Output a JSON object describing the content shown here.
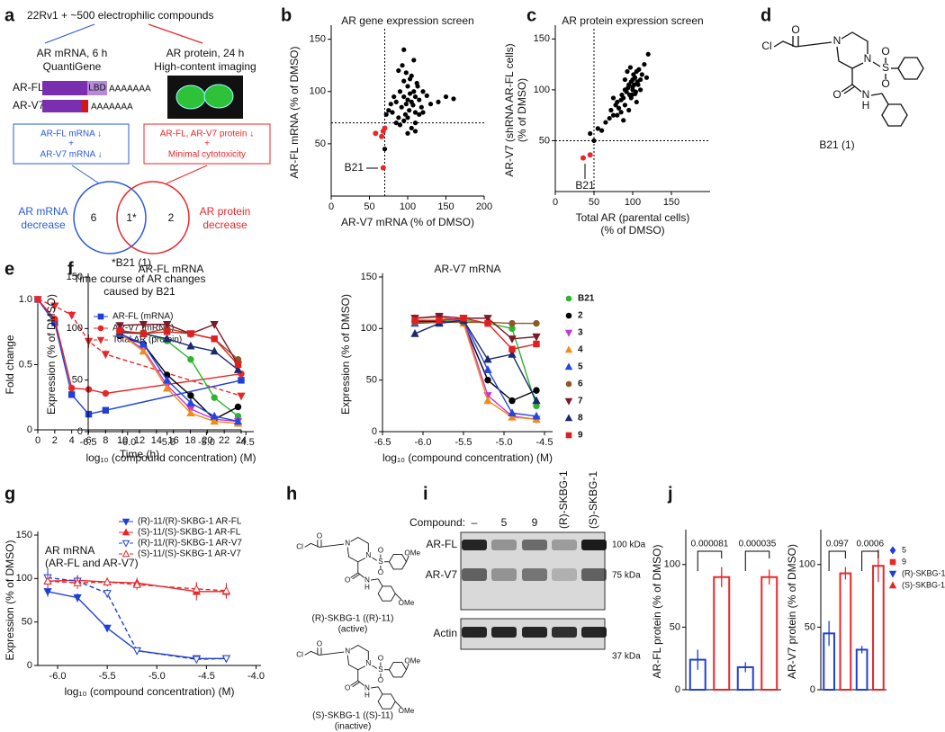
{
  "panel_labels": [
    "a",
    "b",
    "c",
    "d",
    "e",
    "f",
    "g",
    "h",
    "i",
    "j"
  ],
  "panel_a": {
    "header": "22Rv1 + ~500 electrophilic compounds",
    "left_title": [
      "AR mRNA, 6 h",
      "QuantiGene"
    ],
    "right_title": [
      "AR protein, 24 h",
      "High-content imaging"
    ],
    "transcripts": [
      "AR-FL",
      "AR-V7"
    ],
    "domain": "LBD",
    "poly_a": "AAAAAAA",
    "left_box": [
      "AR-FL mRNA ↓",
      "+",
      "AR-V7 mRNA ↓"
    ],
    "right_box": [
      "AR-FL, AR-V7 protein ↓",
      "+",
      "Minimal cytotoxicity"
    ],
    "venn": {
      "left": "6",
      "overlap": "1*",
      "right": "2",
      "left_label": [
        "AR mRNA",
        "decrease"
      ],
      "right_label": [
        "AR protein",
        "decrease"
      ]
    },
    "footnote": "*B21 (1)"
  },
  "panel_d": {
    "atoms": [
      "Cl",
      "O",
      "N",
      "N",
      "S",
      "O",
      "O",
      "O",
      "N",
      "H"
    ],
    "caption": "B21 (1)"
  },
  "panel_h": {
    "molecules": [
      {
        "atoms": [
          "Cl",
          "O",
          "N",
          "N",
          "S",
          "O",
          "O",
          "O",
          "N",
          "H",
          "OMe",
          "OMe"
        ],
        "caption": [
          "(R)-SKBG-1 ((R)-11)",
          "(active)"
        ]
      },
      {
        "atoms": [
          "Cl",
          "O",
          "N",
          "N",
          "S",
          "O",
          "O",
          "O",
          "N",
          "H",
          "OMe",
          "OMe"
        ],
        "caption": [
          "(S)-SKBG-1 ((S)-11)",
          "(inactive)"
        ]
      }
    ]
  },
  "panel_i": {
    "row_label": "Compound:",
    "lanes": [
      "–",
      "5",
      "9",
      "(R)-SKBG-1",
      "(S)-SKBG-1"
    ],
    "bands": [
      "AR-FL",
      "AR-V7",
      "Actin"
    ],
    "markers": [
      "100 kDa",
      "75 kDa",
      "37 kDa"
    ]
  },
  "chart_data": [
    {
      "type": "scatter",
      "title": "AR gene expression screen",
      "xlabel": "AR-V7 mRNA (% of DMSO)",
      "ylabel": "AR-FL mRNA (% of DMSO)",
      "xlim": [
        0,
        200
      ],
      "ylim": [
        0,
        160
      ],
      "xticks": [
        0,
        50,
        100,
        150,
        200
      ],
      "yticks": [
        50,
        100,
        150
      ],
      "vlines": [
        70
      ],
      "hlines": [
        70
      ],
      "series": [
        {
          "color": "#000000",
          "x": [
            80,
            85,
            88,
            90,
            92,
            95,
            95,
            97,
            98,
            100,
            100,
            102,
            103,
            105,
            105,
            107,
            108,
            110,
            110,
            112,
            115,
            118,
            120,
            125,
            130,
            140,
            150,
            160,
            85,
            90,
            95,
            100,
            105,
            110,
            115,
            120,
            88,
            93,
            98,
            103,
            108,
            113,
            75,
            78,
            82,
            70,
            72,
            100,
            110,
            95
          ],
          "values": [
            80,
            90,
            75,
            100,
            85,
            95,
            110,
            78,
            88,
            92,
            105,
            82,
            98,
            90,
            115,
            87,
            100,
            95,
            80,
            108,
            92,
            85,
            100,
            96,
            88,
            90,
            95,
            93,
            70,
            68,
            72,
            75,
            65,
            70,
            78,
            80,
            120,
            125,
            118,
            112,
            130,
            105,
            82,
            88,
            95,
            45,
            78,
            60,
            62,
            140
          ]
        },
        {
          "color": "#e8272a",
          "x": [
            58,
            68,
            66,
            70,
            68
          ],
          "values": [
            60,
            62,
            57,
            65,
            27
          ]
        }
      ],
      "annotations": [
        "B21"
      ]
    },
    {
      "type": "scatter",
      "title": "AR protein expression screen",
      "xlabel": [
        "Total AR (parental cells)",
        "(% of DMSO)"
      ],
      "ylabel": [
        "AR-V7 (shRNA AR-FL cells)",
        "(% of DMSO)"
      ],
      "xlim": [
        0,
        200
      ],
      "ylim": [
        0,
        160
      ],
      "xticks": [
        0,
        50,
        100,
        150
      ],
      "yticks": [
        50,
        100,
        150
      ],
      "vlines": [
        50
      ],
      "hlines": [
        50
      ],
      "series": [
        {
          "color": "#000000",
          "x": [
            60,
            65,
            70,
            72,
            75,
            78,
            80,
            82,
            85,
            86,
            88,
            90,
            90,
            92,
            94,
            95,
            96,
            98,
            100,
            100,
            101,
            102,
            103,
            104,
            105,
            106,
            108,
            110,
            112,
            115,
            118,
            120,
            95,
            98,
            100,
            103,
            105,
            80,
            85,
            90,
            93,
            97,
            50,
            55,
            45,
            75,
            88,
            110,
            107,
            99
          ],
          "values": [
            60,
            68,
            72,
            80,
            75,
            85,
            88,
            82,
            90,
            95,
            92,
            100,
            85,
            98,
            102,
            105,
            95,
            108,
            110,
            100,
            115,
            105,
            112,
            98,
            118,
            108,
            120,
            110,
            115,
            125,
            112,
            135,
            80,
            92,
            103,
            96,
            88,
            75,
            78,
            110,
            118,
            122,
            50,
            62,
            57,
            92,
            70,
            100,
            105,
            95
          ]
        },
        {
          "color": "#e8272a",
          "x": [
            36,
            45
          ],
          "values": [
            33,
            36
          ]
        }
      ],
      "annotations": [
        "B21"
      ]
    },
    {
      "type": "line",
      "title": [
        "Time course of AR changes",
        "caused by B21"
      ],
      "xlabel": "Time (h)",
      "ylabel": "Fold change",
      "x": [
        0,
        2,
        4,
        6,
        8,
        24
      ],
      "xlim": [
        0,
        24
      ],
      "ylim": [
        0,
        1
      ],
      "xticks": [
        0,
        2,
        4,
        6,
        8,
        10,
        12,
        14,
        16,
        18,
        20,
        22,
        24
      ],
      "yticks": [
        0,
        0.5,
        {
          "value": 1,
          "label": "1.0"
        }
      ],
      "series": [
        {
          "name": "AR-FL (mRNA)",
          "color": "#1f3fd6",
          "marker": "square",
          "values": [
            1,
            0.82,
            0.27,
            0.12,
            0.15,
            0.38
          ]
        },
        {
          "name": "AR-V7 (mRNA)",
          "color": "#e8272a",
          "marker": "circle",
          "values": [
            1,
            0.85,
            0.32,
            0.31,
            0.28,
            0.43
          ]
        },
        {
          "name": "Total AR (protein)",
          "color": "#e8272a",
          "marker": "tri-down",
          "dash": true,
          "values": [
            1,
            0.95,
            0.88,
            0.68,
            0.58,
            0.26
          ],
          "errors": [
            0.02,
            0.04,
            0.03,
            0.05,
            0.03,
            0.01
          ]
        }
      ]
    },
    {
      "type": "line",
      "title": "AR-FL mRNA",
      "xlabel": "log₁₀ (compound concentration) (M)",
      "ylabel": "Expression (% of DMSO)",
      "x": [
        -6.1,
        -5.8,
        -5.5,
        -5.2,
        -4.9,
        -4.6
      ],
      "xlim": [
        -6.5,
        -4.4
      ],
      "ylim": [
        0,
        150
      ],
      "xticks": [
        -6.5,
        {
          "value": -6,
          "label": "-6.0"
        },
        -5.5,
        {
          "value": -5,
          "label": "-5.0"
        },
        -4.5
      ],
      "yticks": [
        0,
        50,
        100,
        150
      ],
      "series": [
        {
          "color": "#2db52d",
          "marker": "circle",
          "values": [
            97,
            96,
            88,
            70,
            33,
            15
          ]
        },
        {
          "color": "#000000",
          "marker": "circle",
          "values": [
            93,
            85,
            55,
            35,
            12,
            24
          ]
        },
        {
          "color": "#c238d6",
          "marker": "tri-down",
          "values": [
            95,
            80,
            45,
            22,
            12,
            10
          ]
        },
        {
          "color": "#f28b1e",
          "marker": "tri-up",
          "values": [
            95,
            78,
            42,
            18,
            10,
            8
          ]
        },
        {
          "color": "#2646e0",
          "marker": "tri-up",
          "values": [
            95,
            85,
            50,
            28,
            15,
            10
          ]
        },
        {
          "color": "#8b5a2b",
          "marker": "circle",
          "values": [
            96,
            95,
            100,
            95,
            90,
            70
          ]
        },
        {
          "color": "#7a1a2a",
          "marker": "tri-down",
          "values": [
            103,
            104,
            104,
            95,
            104,
            65
          ]
        },
        {
          "color": "#1a2a6e",
          "marker": "tri-up",
          "values": [
            97,
            95,
            90,
            83,
            78,
            60
          ]
        },
        {
          "color": "#e02020",
          "marker": "square",
          "values": [
            98,
            95,
            97,
            95,
            90,
            65
          ]
        }
      ]
    },
    {
      "type": "line",
      "title": "AR-V7 mRNA",
      "xlabel": "log₁₀ (compound concentration) (M)",
      "ylabel": "Expression (% of DMSO)",
      "x": [
        -6.1,
        -5.8,
        -5.5,
        -5.2,
        -4.9,
        -4.6
      ],
      "xlim": [
        -6.5,
        -4.4
      ],
      "ylim": [
        0,
        150
      ],
      "xticks": [
        -6.5,
        {
          "value": -6,
          "label": "-6.0"
        },
        -5.5,
        {
          "value": -5,
          "label": "-5.0"
        },
        -4.5
      ],
      "yticks": [
        0,
        50,
        100,
        150
      ],
      "series": [
        {
          "name": "B21",
          "color": "#2db52d",
          "marker": "circle",
          "values": [
            108,
            108,
            108,
            105,
            100,
            25
          ]
        },
        {
          "name": "2",
          "color": "#000000",
          "marker": "circle",
          "values": [
            107,
            107,
            106,
            50,
            30,
            40
          ]
        },
        {
          "name": "3",
          "color": "#c238d6",
          "marker": "tri-down",
          "values": [
            110,
            111,
            108,
            35,
            15,
            12
          ]
        },
        {
          "name": "4",
          "color": "#f28b1e",
          "marker": "tri-up",
          "values": [
            110,
            111,
            105,
            30,
            14,
            12
          ]
        },
        {
          "name": "5",
          "color": "#2646e0",
          "marker": "tri-up",
          "values": [
            105,
            106,
            108,
            60,
            18,
            15
          ]
        },
        {
          "name": "6",
          "color": "#8b5a2b",
          "marker": "circle",
          "values": [
            106,
            106,
            106,
            106,
            105,
            105
          ]
        },
        {
          "name": "7",
          "color": "#7a1a2a",
          "marker": "tri-down",
          "values": [
            110,
            112,
            110,
            110,
            90,
            92
          ]
        },
        {
          "name": "8",
          "color": "#1a2a6e",
          "marker": "tri-up",
          "values": [
            95,
            105,
            108,
            70,
            75,
            30
          ]
        },
        {
          "name": "9",
          "color": "#e02020",
          "marker": "square",
          "values": [
            108,
            108,
            110,
            105,
            80,
            85
          ]
        }
      ]
    },
    {
      "type": "line",
      "xlabel": "log₁₀ (compound concentration) (M)",
      "ylabel": "Expression (% of DMSO)",
      "annotations": [
        "AR mRNA",
        "(AR-FL and AR-V7)"
      ],
      "x": [
        -6.1,
        -5.8,
        -5.5,
        -5.2,
        -4.6,
        -4.3
      ],
      "xlim": [
        -6.2,
        -3.95
      ],
      "ylim": [
        0,
        150
      ],
      "xticks": [
        {
          "value": -6,
          "label": "-6.0"
        },
        -5.5,
        {
          "value": -5,
          "label": "-5.0"
        },
        -4.5,
        {
          "value": -4,
          "label": "-4.0"
        }
      ],
      "yticks": [
        0,
        50,
        100,
        150
      ],
      "series": [
        {
          "name": "(R)-11/(R)-SKBG-1 AR-FL",
          "color": "#1f3fd6",
          "marker": "tri-down",
          "values": [
            85,
            78,
            43,
            17,
            8,
            8
          ],
          "errors": [
            6,
            5,
            4,
            3,
            2,
            2
          ]
        },
        {
          "name": "(S)-11/(S)-SKBG-1 AR-FL",
          "color": "#e8272a",
          "marker": "tri-up",
          "values": [
            97,
            98,
            96,
            95,
            85,
            85
          ],
          "errors": [
            8,
            6,
            5,
            6,
            10,
            8
          ]
        },
        {
          "name": "(R)-11/(R)-SKBG-1 AR-V7",
          "color": "#1f3fd6",
          "marker": "tri-down-open",
          "dash": true,
          "values": [
            101,
            97,
            83,
            17,
            7,
            8
          ],
          "errors": [
            10,
            6,
            5,
            3,
            2,
            2
          ]
        },
        {
          "name": "(S)-11/(S)-SKBG-1 AR-V7",
          "color": "#e8272a",
          "marker": "tri-up-open",
          "dash": true,
          "values": [
            97,
            95,
            96,
            93,
            88,
            86
          ],
          "errors": [
            8,
            7,
            5,
            6,
            8,
            9
          ]
        }
      ]
    },
    {
      "type": "bar",
      "ylabel": "AR-FL protein (% of DMSO)",
      "ylim": [
        0,
        125
      ],
      "yticks": [
        0,
        50,
        100
      ],
      "annotations": [
        "0.000081",
        "0.000035"
      ],
      "series": [
        {
          "color": "#1f3fd6",
          "values": [
            24
          ],
          "errors": [
            8
          ]
        },
        {
          "color": "#e8272a",
          "values": [
            90
          ],
          "errors": [
            8
          ]
        },
        {
          "color": "#1f3fd6",
          "values": [
            18
          ],
          "errors": [
            4
          ]
        },
        {
          "color": "#e8272a",
          "values": [
            90
          ],
          "errors": [
            6
          ]
        }
      ]
    },
    {
      "type": "bar",
      "ylabel": "AR-V7 protein (% of DMSO)",
      "ylim": [
        0,
        125
      ],
      "yticks": [
        0,
        50,
        100
      ],
      "annotations": [
        "0.097",
        "0.0006"
      ],
      "series": [
        {
          "name": "5",
          "color": "#1f3fd6",
          "marker": "diamond",
          "values": [
            45
          ],
          "errors": [
            10
          ]
        },
        {
          "name": "9",
          "color": "#e8272a",
          "marker": "square",
          "values": [
            93
          ],
          "errors": [
            5
          ]
        },
        {
          "name": "(R)-SKBG-1",
          "color": "#1f3fd6",
          "marker": "tri-down",
          "values": [
            32
          ],
          "errors": [
            3
          ]
        },
        {
          "name": "(S)-SKBG-1",
          "color": "#e8272a",
          "marker": "tri-up",
          "values": [
            99
          ],
          "errors": [
            13
          ]
        }
      ]
    }
  ]
}
